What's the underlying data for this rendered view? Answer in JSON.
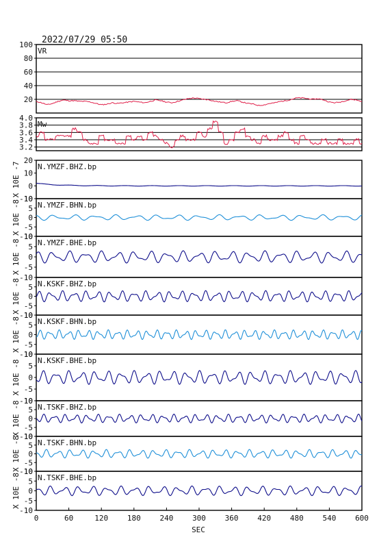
{
  "header": {
    "timestamp": "2022/07/29 05:50"
  },
  "xaxis": {
    "label": "SEC",
    "ticks": [
      0,
      60,
      120,
      180,
      240,
      300,
      360,
      420,
      480,
      540,
      600
    ],
    "range": [
      0,
      600
    ]
  },
  "colors": {
    "vr_mw": "#e0204a",
    "dark": "#0d0d8a",
    "light": "#1e8fd8",
    "grid": "#000000"
  },
  "chart_data": [
    {
      "type": "line",
      "panel": "vr",
      "title": "VR",
      "ylim": [
        0,
        100
      ],
      "yticks": [
        "100",
        "80",
        "60",
        "40",
        "20"
      ],
      "grid": true,
      "series": [
        {
          "name": "VR",
          "x": [
            0,
            10,
            20,
            30,
            40,
            50,
            60,
            70,
            80,
            90,
            100,
            110,
            120,
            130,
            140,
            150,
            160,
            170,
            180,
            190,
            200,
            210,
            220,
            230,
            240,
            250,
            260,
            270,
            280,
            290,
            300,
            310,
            320,
            330,
            340,
            350,
            360,
            370,
            380,
            390,
            400,
            410,
            420,
            430,
            440,
            450,
            460,
            470,
            480,
            490,
            500,
            510,
            520,
            530,
            540,
            550,
            560,
            570,
            580,
            590,
            600
          ],
          "y": [
            17,
            15,
            12,
            14,
            17,
            19,
            18,
            18,
            17,
            17,
            16,
            14,
            12,
            13,
            15,
            14,
            15,
            16,
            17,
            16,
            15,
            17,
            19,
            18,
            16,
            15,
            17,
            19,
            21,
            22,
            21,
            20,
            19,
            17,
            16,
            15,
            17,
            18,
            16,
            14,
            13,
            11,
            12,
            14,
            15,
            17,
            18,
            20,
            22,
            22,
            21,
            20,
            21,
            19,
            16,
            15,
            16,
            18,
            20,
            19,
            17
          ]
        }
      ]
    },
    {
      "type": "line",
      "panel": "mw",
      "title": "Mw",
      "ylim": [
        3.1,
        4.0
      ],
      "yticks": [
        "4.0",
        "3.8",
        "3.6",
        "3.4",
        "3.2"
      ],
      "grid": true,
      "series": [
        {
          "name": "Mw",
          "x": [
            0,
            10,
            20,
            30,
            40,
            50,
            60,
            70,
            80,
            90,
            100,
            110,
            120,
            130,
            140,
            150,
            160,
            170,
            180,
            190,
            200,
            210,
            220,
            230,
            240,
            250,
            260,
            270,
            280,
            290,
            300,
            310,
            320,
            330,
            340,
            350,
            360,
            370,
            380,
            390,
            400,
            410,
            420,
            430,
            440,
            450,
            460,
            470,
            480,
            490,
            500,
            510,
            520,
            530,
            540,
            550,
            560,
            570,
            580,
            590,
            600
          ],
          "y": [
            3.5,
            3.6,
            3.4,
            3.4,
            3.5,
            3.5,
            3.5,
            3.7,
            3.6,
            3.4,
            3.3,
            3.3,
            3.5,
            3.4,
            3.4,
            3.3,
            3.3,
            3.5,
            3.4,
            3.5,
            3.4,
            3.6,
            3.5,
            3.4,
            3.3,
            3.2,
            3.4,
            3.5,
            3.4,
            3.4,
            3.6,
            3.5,
            3.7,
            3.9,
            3.6,
            3.3,
            3.4,
            3.6,
            3.7,
            3.5,
            3.4,
            3.3,
            3.5,
            3.4,
            3.4,
            3.5,
            3.6,
            3.4,
            3.3,
            3.5,
            3.4,
            3.3,
            3.3,
            3.4,
            3.3,
            3.3,
            3.4,
            3.3,
            3.3,
            3.4,
            3.3
          ]
        }
      ]
    },
    {
      "type": "line",
      "panel": "trace",
      "title": "N.YMZF.BHZ.bp",
      "yunit": "X 10E -7",
      "ylim": [
        -10,
        20
      ],
      "yticks": [
        "20",
        "10",
        "0",
        "-10"
      ],
      "color": "dark",
      "amp": 0.5,
      "period": 40,
      "seed": 1
    },
    {
      "type": "line",
      "panel": "trace",
      "title": "N.YMZF.BHN.bp",
      "yunit": "X 10E -8",
      "ylim": [
        -10,
        10
      ],
      "yticks": [
        "10",
        "5",
        "0",
        "-5",
        "-10"
      ],
      "color": "light",
      "amp": 1.5,
      "period": 38,
      "seed": 2
    },
    {
      "type": "line",
      "panel": "trace",
      "title": "N.YMZF.BHE.bp",
      "yunit": "X 10E -8",
      "ylim": [
        -10,
        10
      ],
      "yticks": [
        "10",
        "5",
        "0",
        "-5",
        "-10"
      ],
      "color": "dark",
      "amp": 3,
      "period": 30,
      "seed": 3
    },
    {
      "type": "line",
      "panel": "trace",
      "title": "N.KSKF.BHZ.bp",
      "yunit": "X 10E -8",
      "ylim": [
        -10,
        10
      ],
      "yticks": [
        "5",
        "0",
        "-5",
        "-10"
      ],
      "color": "dark",
      "amp": 3,
      "period": 22,
      "seed": 4
    },
    {
      "type": "line",
      "panel": "trace",
      "title": "N.KSKF.BHN.bp",
      "yunit": "X 10E -8",
      "ylim": [
        -10,
        10
      ],
      "yticks": [
        "10",
        "5",
        "0",
        "-5",
        "-10"
      ],
      "color": "light",
      "amp": 2.5,
      "period": 18,
      "seed": 5
    },
    {
      "type": "line",
      "panel": "trace",
      "title": "N.KSKF.BHE.bp",
      "yunit": "X 10E -8",
      "ylim": [
        -10,
        10
      ],
      "yticks": [
        "10",
        "5",
        "0",
        "-5",
        "-10"
      ],
      "color": "dark",
      "amp": 3,
      "period": 24,
      "seed": 6
    },
    {
      "type": "line",
      "panel": "trace",
      "title": "N.TSKF.BHZ.bp",
      "yunit": "X 10E -8",
      "ylim": [
        -10,
        10
      ],
      "yticks": [
        "10",
        "5",
        "0",
        "-5",
        "-10"
      ],
      "color": "dark",
      "amp": 2.5,
      "period": 20,
      "seed": 7
    },
    {
      "type": "line",
      "panel": "trace",
      "title": "N.TSKF.BHN.bp",
      "yunit": "X 10E -8",
      "ylim": [
        -10,
        10
      ],
      "yticks": [
        "10",
        "5",
        "0",
        "-5",
        "-10"
      ],
      "color": "light",
      "amp": 2.5,
      "period": 22,
      "seed": 8
    },
    {
      "type": "line",
      "panel": "trace",
      "title": "N.TSKF.BHE.bp",
      "yunit": "X 10E -8",
      "ylim": [
        -10,
        10
      ],
      "yticks": [
        "10",
        "5",
        "0",
        "-5",
        "-10"
      ],
      "color": "dark",
      "amp": 2.5,
      "period": 26,
      "seed": 9
    }
  ]
}
